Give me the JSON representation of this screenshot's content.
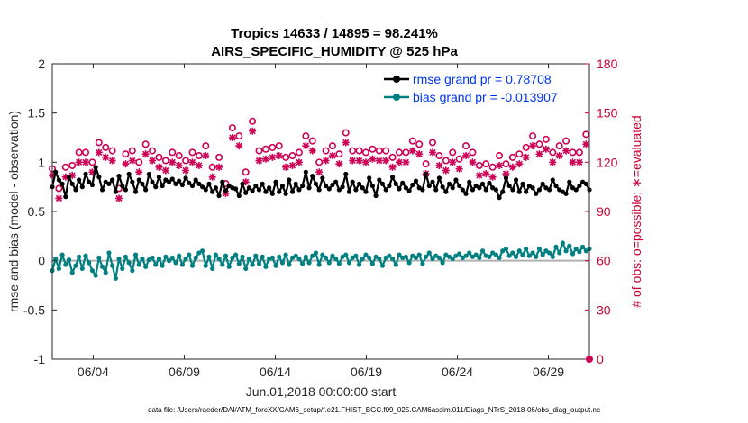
{
  "chart_data": {
    "type": "line",
    "title": "Tropics 14633 / 14895 = 98.241%",
    "subtitle": "AIRS_SPECIFIC_HUMIDITY @ 525 hPa",
    "xlabel": "Jun.01,2018 00:00:00 start",
    "ylabel": "rmse and bias (model - observation)",
    "ylabel_right": "# of obs: o=possible; ∗=evaluated",
    "footer": "data file: /Users/raeder/DAI/ATM_forcXX/CAM6_setup/f.e21.FHIST_BGC.f09_025.CAM6assim.011/Diags_NTrS_2018-06/obs_diag_output.nc",
    "xlim": [
      0.75,
      30.25
    ],
    "ylim": [
      -1,
      2
    ],
    "ylim_right": [
      0,
      180
    ],
    "xticks": [
      3.0,
      8.0,
      13.0,
      18.0,
      23.0,
      28.0
    ],
    "xtick_labels": [
      "06/04",
      "06/09",
      "06/14",
      "06/19",
      "06/24",
      "06/29"
    ],
    "yticks": [
      -1,
      -0.5,
      0,
      0.5,
      1,
      1.5,
      2
    ],
    "ytick_labels": [
      "-1",
      "-0.5",
      "0",
      "0.5",
      "1",
      "1.5",
      "2"
    ],
    "yticks_right": [
      0,
      30,
      60,
      90,
      120,
      150,
      180
    ],
    "ytick_labels_right": [
      "0",
      "30",
      "60",
      "90",
      "120",
      "150",
      "180"
    ],
    "legend": [
      "rmse grand pr = 0.78708",
      "bias grand pr = -0.013907"
    ],
    "series": [
      {
        "name": "rmse",
        "color": "#000000",
        "axis": "left",
        "values": [
          0.75,
          0.9,
          0.82,
          0.78,
          0.65,
          0.85,
          0.78,
          0.72,
          0.82,
          0.75,
          0.88,
          0.8,
          0.77,
          0.95,
          0.85,
          0.72,
          0.8,
          0.78,
          0.82,
          0.7,
          0.86,
          0.76,
          0.72,
          0.88,
          0.8,
          0.7,
          0.82,
          0.78,
          0.72,
          0.88,
          0.8,
          0.75,
          0.85,
          0.76,
          0.82,
          0.8,
          0.83,
          0.78,
          0.81,
          0.77,
          0.84,
          0.79,
          0.76,
          0.82,
          0.78,
          0.75,
          0.72,
          0.78,
          0.7,
          0.74,
          0.66,
          0.8,
          0.71,
          0.76,
          0.74,
          0.73,
          0.66,
          0.78,
          0.69,
          0.74,
          0.71,
          0.76,
          0.72,
          0.78,
          0.7,
          0.74,
          0.68,
          0.8,
          0.7,
          0.76,
          0.68,
          0.82,
          0.7,
          0.78,
          0.72,
          0.76,
          0.9,
          0.74,
          0.86,
          0.78,
          0.72,
          0.84,
          0.76,
          0.73,
          0.77,
          0.8,
          0.72,
          0.75,
          0.88,
          0.7,
          0.8,
          0.72,
          0.78,
          0.74,
          0.7,
          0.84,
          0.76,
          0.66,
          0.82,
          0.78,
          0.72,
          0.76,
          0.85,
          0.78,
          0.73,
          0.79,
          0.74,
          0.71,
          0.77,
          0.81,
          0.74,
          0.72,
          0.88,
          0.76,
          0.8,
          0.72,
          0.84,
          0.75,
          0.7,
          0.78,
          0.74,
          0.82,
          0.76,
          0.72,
          0.68,
          0.8,
          0.72,
          0.76,
          0.74,
          0.78,
          0.72,
          0.79,
          0.74,
          0.72,
          0.64,
          0.7,
          0.84,
          0.76,
          0.72,
          0.82,
          0.7,
          0.78,
          0.7,
          0.76,
          0.74,
          0.68,
          0.72,
          0.78,
          0.74,
          0.72,
          0.82,
          0.76,
          0.72,
          0.7,
          0.68,
          0.8,
          0.74,
          0.72,
          0.76,
          0.8,
          0.78,
          0.72
        ]
      },
      {
        "name": "bias",
        "color": "#008080",
        "axis": "left",
        "values": [
          -0.1,
          0.02,
          -0.08,
          0.06,
          -0.04,
          0.01,
          -0.12,
          -0.05,
          0.04,
          -0.08,
          0.05,
          -0.02,
          -0.1,
          -0.15,
          0.03,
          -0.06,
          -0.12,
          0.08,
          -0.05,
          -0.18,
          0.02,
          -0.08,
          0.04,
          -0.02,
          -0.1,
          0.06,
          -0.04,
          0.02,
          -0.06,
          0.01,
          0.03,
          -0.04,
          0.02,
          -0.05,
          0.04,
          0.0,
          0.03,
          -0.02,
          0.05,
          -0.04,
          0.02,
          0.06,
          -0.05,
          0.03,
          0.08,
          0.1,
          -0.05,
          0.04,
          -0.08,
          0.06,
          0.02,
          -0.04,
          0.05,
          -0.06,
          0.03,
          0.06,
          -0.03,
          0.04,
          -0.08,
          0.02,
          -0.04,
          0.05,
          -0.03,
          0.04,
          -0.06,
          0.02,
          0.03,
          -0.05,
          0.04,
          -0.02,
          0.06,
          -0.04,
          0.03,
          0.05,
          0.02,
          -0.03,
          0.04,
          -0.02,
          0.05,
          0.08,
          -0.04,
          0.06,
          0.03,
          -0.02,
          0.05,
          0.02,
          -0.03,
          0.04,
          0.06,
          -0.02,
          0.03,
          0.05,
          -0.04,
          0.02,
          0.06,
          0.03,
          -0.03,
          0.04,
          0.02,
          -0.05,
          0.03,
          0.05,
          0.02,
          -0.04,
          0.06,
          0.03,
          0.04,
          -0.02,
          0.05,
          0.03,
          0.06,
          -0.03,
          0.04,
          0.08,
          0.02,
          0.05,
          0.03,
          -0.02,
          0.06,
          0.04,
          0.02,
          0.05,
          0.07,
          0.03,
          0.05,
          0.08,
          0.04,
          0.06,
          0.03,
          0.1,
          0.05,
          0.04,
          0.08,
          0.06,
          0.03,
          0.1,
          0.12,
          0.05,
          0.08,
          0.04,
          0.1,
          0.06,
          0.12,
          0.05,
          0.08,
          0.04,
          0.12,
          0.06,
          0.1,
          0.08,
          0.04,
          0.14,
          0.08,
          0.18,
          0.1,
          0.15,
          0.07,
          0.12,
          0.09,
          0.14,
          0.1,
          0.12
        ]
      },
      {
        "name": "possible",
        "color": "#cc0055",
        "axis": "right",
        "marker": "o",
        "values": [
          116,
          121,
          104,
          126,
          117,
          119,
          118,
          122,
          126,
          120,
          126,
          107,
          120,
          123,
          132,
          121,
          129,
          126,
          127,
          117,
          104,
          116,
          125,
          130,
          127,
          113,
          120,
          122,
          131,
          105,
          127,
          107,
          123,
          116,
          121,
          126,
          126,
          123,
          124,
          111,
          121,
          129,
          126,
          123,
          124,
          127,
          130,
          108,
          117,
          120,
          123,
          126,
          107,
          119,
          141,
          124,
          136,
          150,
          114,
          140,
          145,
          123,
          127,
          138,
          128,
          126,
          129,
          129,
          130,
          106,
          123,
          129,
          124,
          124,
          126,
          126,
          136,
          122,
          133,
          121,
          120,
          137,
          127,
          108,
          130,
          127,
          125,
          120,
          138,
          129,
          127,
          138,
          127,
          137,
          126,
          124,
          128,
          121,
          127,
          126,
          127,
          131,
          123,
          129,
          126,
          127,
          126,
          122,
          133,
          118,
          131,
          121,
          119,
          137,
          132,
          130,
          124,
          125,
          121,
          129,
          126,
          128,
          122,
          125,
          130,
          127,
          126,
          132,
          118,
          126,
          119,
          132,
          117,
          129,
          124,
          126,
          119,
          127,
          123,
          135,
          125,
          119,
          129,
          126,
          136,
          121,
          131,
          124,
          134,
          122,
          126,
          128,
          130,
          126,
          133,
          121,
          126,
          130,
          126,
          122,
          137
        ]
      },
      {
        "name": "evaluated",
        "color": "#cc0055",
        "axis": "right",
        "marker": "*",
        "values": [
          112,
          115,
          98,
          120,
          111,
          113,
          112,
          116,
          120,
          114,
          120,
          101,
          114,
          117,
          126,
          115,
          123,
          120,
          121,
          111,
          98,
          110,
          119,
          124,
          121,
          107,
          114,
          116,
          125,
          99,
          121,
          101,
          117,
          110,
          115,
          120,
          120,
          117,
          118,
          105,
          115,
          123,
          120,
          117,
          118,
          121,
          124,
          102,
          111,
          114,
          117,
          120,
          101,
          113,
          135,
          118,
          130,
          144,
          108,
          134,
          139,
          117,
          121,
          132,
          122,
          120,
          123,
          123,
          124,
          100,
          117,
          123,
          118,
          118,
          120,
          120,
          130,
          116,
          127,
          115,
          114,
          131,
          121,
          102,
          124,
          121,
          119,
          114,
          132,
          123,
          121,
          132,
          121,
          131,
          120,
          118,
          122,
          115,
          121,
          120,
          121,
          125,
          117,
          123,
          120,
          121,
          120,
          116,
          127,
          112,
          125,
          115,
          113,
          131,
          126,
          124,
          118,
          119,
          115,
          123,
          120,
          122,
          116,
          119,
          124,
          121,
          120,
          126,
          112,
          120,
          113,
          126,
          111,
          123,
          118,
          120,
          113,
          121,
          117,
          129,
          119,
          113,
          123,
          120,
          130,
          115,
          125,
          118,
          128,
          116,
          120,
          122,
          124,
          120,
          127,
          115,
          120,
          124,
          120,
          116,
          131
        ]
      }
    ]
  },
  "colors": {
    "rmse": "#000000",
    "bias": "#008080",
    "obs": "#cc0055",
    "zero_line": "#b0b0b0",
    "legend_text": "#0033ee",
    "right_axis": "#cc0033"
  }
}
